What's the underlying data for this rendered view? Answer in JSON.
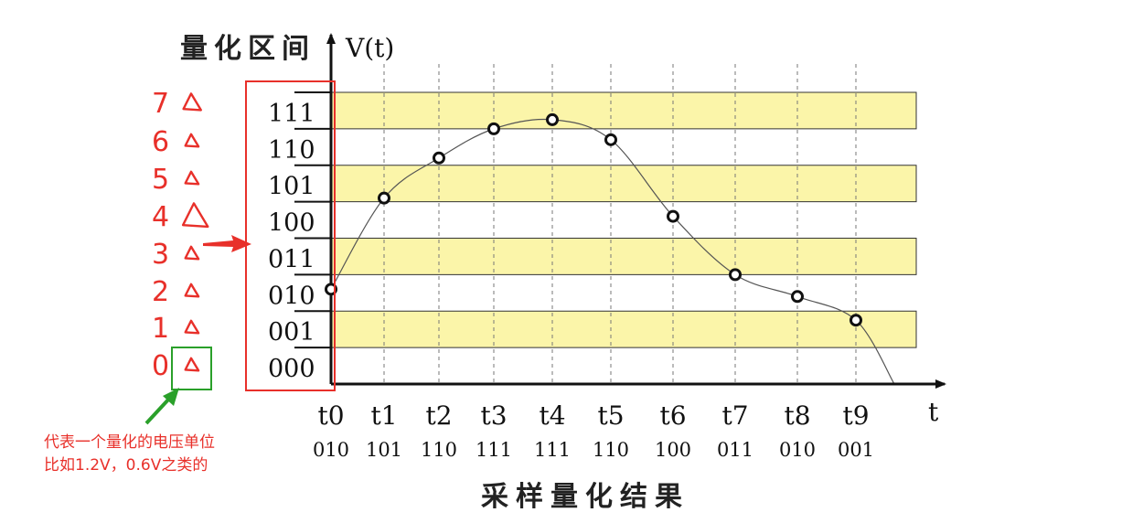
{
  "y_axis_title": "量化区间",
  "y_axis_label": "V(t)",
  "x_axis_label": "t",
  "bottom_title": "采样量化结果",
  "level_codes": [
    "000",
    "001",
    "010",
    "011",
    "100",
    "101",
    "110",
    "111"
  ],
  "level_indices": [
    "0",
    "1",
    "2",
    "3",
    "4",
    "5",
    "6",
    "7"
  ],
  "annotation": {
    "line1": "代表一个量化的电压单位",
    "line2": "比如1.2V，0.6V之类的"
  },
  "colors": {
    "band": "#fbf5a9",
    "band_border": "#333333",
    "red": "#e8302a",
    "green": "#2aa02a",
    "axis": "#111111"
  },
  "chart_data": {
    "type": "line",
    "samples": [
      {
        "t": "t0",
        "code": "010",
        "level": 2.6
      },
      {
        "t": "t1",
        "code": "101",
        "level": 5.1
      },
      {
        "t": "t2",
        "code": "110",
        "level": 6.2
      },
      {
        "t": "t3",
        "code": "111",
        "level": 7.0
      },
      {
        "t": "t4",
        "code": "111",
        "level": 7.25
      },
      {
        "t": "t5",
        "code": "110",
        "level": 6.7
      },
      {
        "t": "t6",
        "code": "100",
        "level": 4.6
      },
      {
        "t": "t7",
        "code": "011",
        "level": 3.0
      },
      {
        "t": "t8",
        "code": "010",
        "level": 2.4
      },
      {
        "t": "t9",
        "code": "001",
        "level": 1.75
      }
    ],
    "ylim": [
      0,
      8
    ]
  }
}
